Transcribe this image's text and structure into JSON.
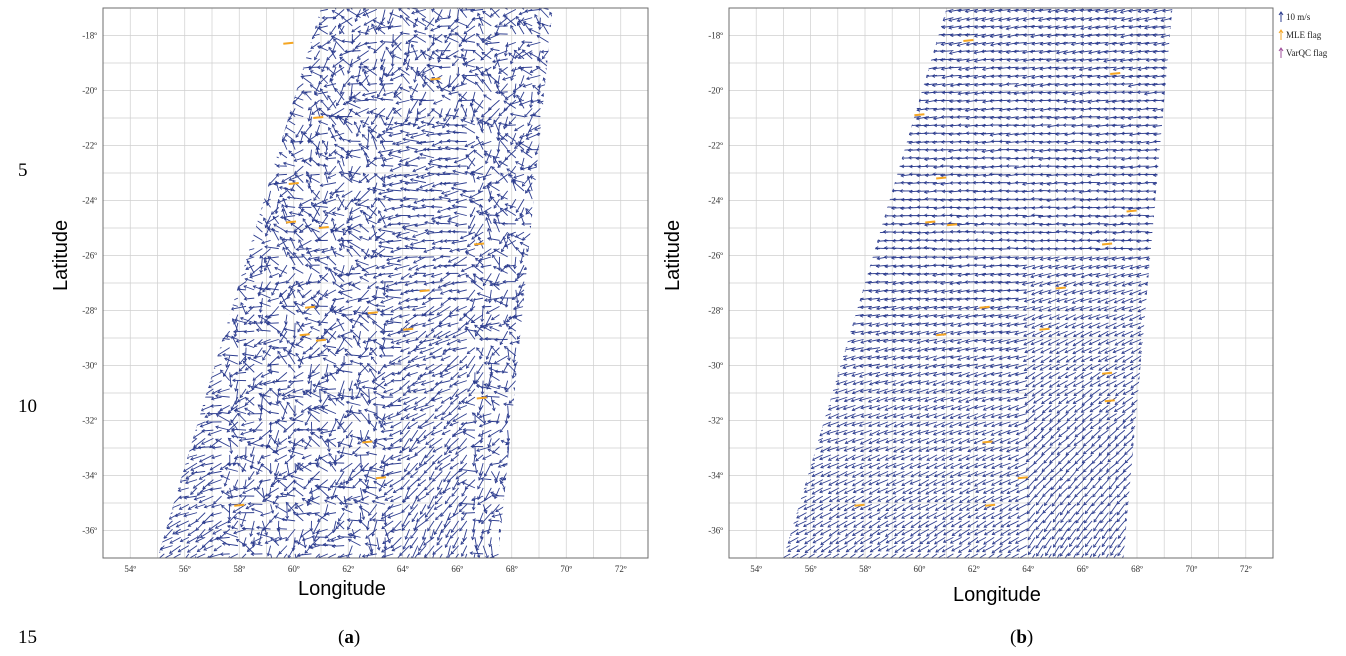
{
  "line_numbers": [
    "5",
    "10",
    "15"
  ],
  "colors": {
    "vector": "#2d3d8f",
    "mle_flag": "#f5a623",
    "varqc_flag": "#a0509c",
    "grid": "#cfcfcf",
    "frame": "#6e6e6e"
  },
  "chart_data": [
    {
      "type": "scatter",
      "caption": "a",
      "xlabel": "Longitude",
      "ylabel": "Latitude",
      "xlim": [
        53,
        73
      ],
      "ylim": [
        -37,
        -17
      ],
      "x_ticks": [
        "54º",
        "56º",
        "58º",
        "60º",
        "62º",
        "64º",
        "66º",
        "68º",
        "70º",
        "72º"
      ],
      "y_ticks": [
        "-18º",
        "-20º",
        "-22º",
        "-24º",
        "-26º",
        "-28º",
        "-30º",
        "-32º",
        "-34º",
        "-36º"
      ],
      "grid": true,
      "legend": null,
      "swath_corners": [
        [
          55.0,
          -37.0
        ],
        [
          61.0,
          -17.0
        ],
        [
          69.5,
          -17.0
        ],
        [
          67.5,
          -37.0
        ]
      ],
      "series": [
        {
          "name": "",
          "values": "wind vectors, noisy retrieval"
        },
        {
          "name": "",
          "values": "MLE-flagged vectors"
        }
      ],
      "mle_points": [
        [
          59.8,
          -18.3
        ],
        [
          65.2,
          -19.6
        ],
        [
          60.9,
          -21.0
        ],
        [
          60.0,
          -23.4
        ],
        [
          59.9,
          -24.8
        ],
        [
          61.1,
          -25.0
        ],
        [
          66.8,
          -25.6
        ],
        [
          60.6,
          -27.9
        ],
        [
          62.9,
          -28.1
        ],
        [
          64.8,
          -27.3
        ],
        [
          60.4,
          -28.9
        ],
        [
          64.2,
          -28.7
        ],
        [
          61.0,
          -29.1
        ],
        [
          66.9,
          -31.2
        ],
        [
          62.7,
          -32.8
        ],
        [
          63.2,
          -34.1
        ],
        [
          58.0,
          -35.1
        ]
      ]
    },
    {
      "type": "scatter",
      "caption": "b",
      "xlabel": "Longitude",
      "ylabel": "Latitude",
      "xlim": [
        53,
        73
      ],
      "ylim": [
        -37,
        -17
      ],
      "x_ticks": [
        "54º",
        "56º",
        "58º",
        "60º",
        "62º",
        "64º",
        "66º",
        "68º",
        "70º",
        "72º"
      ],
      "y_ticks": [
        "-18º",
        "-20º",
        "-22º",
        "-24º",
        "-26º",
        "-28º",
        "-30º",
        "-32º",
        "-34º",
        "-36º"
      ],
      "grid": true,
      "legend": {
        "placement": "top-right",
        "entries": [
          "10 m/s",
          "MLE flag",
          "VarQC flag"
        ]
      },
      "swath_corners": [
        [
          55.0,
          -37.0
        ],
        [
          61.0,
          -17.0
        ],
        [
          69.3,
          -17.0
        ],
        [
          67.5,
          -37.0
        ]
      ],
      "series": [
        {
          "name": "",
          "values": "wind vectors, smooth retrieval"
        },
        {
          "name": "MLE flag",
          "values": "MLE-flagged vectors"
        }
      ],
      "mle_points": [
        [
          61.8,
          -18.2
        ],
        [
          67.2,
          -19.4
        ],
        [
          60.0,
          -20.9
        ],
        [
          60.8,
          -23.2
        ],
        [
          67.8,
          -24.4
        ],
        [
          60.4,
          -24.8
        ],
        [
          61.2,
          -24.9
        ],
        [
          66.9,
          -25.6
        ],
        [
          65.2,
          -27.2
        ],
        [
          62.4,
          -27.9
        ],
        [
          60.8,
          -28.9
        ],
        [
          64.6,
          -28.7
        ],
        [
          66.9,
          -30.3
        ],
        [
          67.0,
          -31.3
        ],
        [
          62.5,
          -32.8
        ],
        [
          63.8,
          -34.1
        ],
        [
          62.6,
          -35.1
        ],
        [
          57.8,
          -35.1
        ]
      ]
    }
  ],
  "captions": {
    "a_open": "(",
    "a": "a",
    "a_close": ")",
    "b_open": "(",
    "b": "b",
    "b_close": ")"
  }
}
